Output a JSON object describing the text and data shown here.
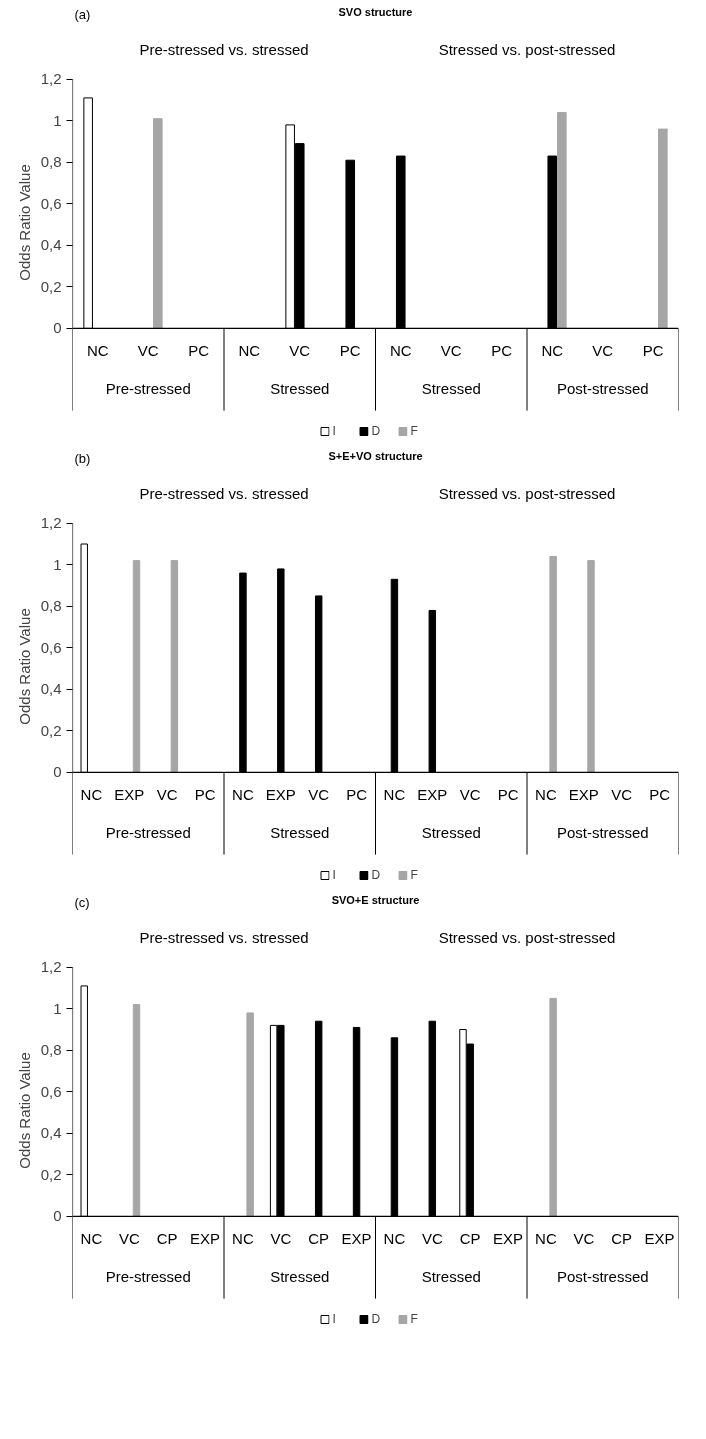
{
  "chart_data": [
    {
      "type": "bar",
      "title": "SVO structure",
      "ylabel": "Odds Ratio Value",
      "categories": [
        "NC",
        "VC",
        "PC",
        "NC",
        "VC",
        "PC",
        "NC",
        "VC",
        "PC",
        "NC",
        "VC",
        "PC"
      ],
      "series": [
        {
          "name": "I",
          "color": "#ffffff",
          "values": [
            1.11,
            null,
            null,
            null,
            0.98,
            null,
            null,
            null,
            null,
            null,
            null,
            null
          ]
        },
        {
          "name": "D",
          "color": "#000000",
          "values": [
            null,
            null,
            null,
            null,
            0.89,
            0.81,
            0.83,
            null,
            null,
            0.83,
            null,
            null
          ]
        },
        {
          "name": "F",
          "color": "#a6a6a6",
          "values": [
            null,
            1.01,
            null,
            null,
            null,
            null,
            null,
            null,
            null,
            1.04,
            null,
            0.96
          ]
        }
      ],
      "ylim": [
        0,
        1.2
      ],
      "yticks": [
        0,
        {
          "value": 0.2,
          "label": "0,2"
        },
        {
          "value": 0.4,
          "label": "0,4"
        },
        {
          "value": 0.6,
          "label": "0,6"
        },
        {
          "value": 0.8,
          "label": "0,8"
        },
        1,
        {
          "value": 1.2,
          "label": "1,2"
        }
      ],
      "legend": "bottom",
      "annotations": [
        "(a)",
        "Pre-stressed vs. stressed",
        "Stressed vs. post-stressed",
        "Pre-stressed",
        "Stressed",
        "Stressed",
        "Post-stressed"
      ]
    },
    {
      "type": "bar",
      "title": "S+E+VO structure",
      "ylabel": "Odds Ratio Value",
      "categories": [
        "NC",
        "EXP",
        "VC",
        "PC",
        "NC",
        "EXP",
        "VC",
        "PC",
        "NC",
        "EXP",
        "VC",
        "PC",
        "NC",
        "EXP",
        "VC",
        "PC"
      ],
      "series": [
        {
          "name": "I",
          "color": "#ffffff",
          "values": [
            1.1,
            null,
            null,
            null,
            null,
            null,
            null,
            null,
            null,
            null,
            null,
            null,
            null,
            null,
            null,
            null
          ]
        },
        {
          "name": "D",
          "color": "#000000",
          "values": [
            null,
            null,
            null,
            null,
            0.96,
            0.98,
            0.85,
            null,
            0.93,
            0.78,
            null,
            null,
            null,
            null,
            null,
            null
          ]
        },
        {
          "name": "F",
          "color": "#a6a6a6",
          "values": [
            null,
            1.02,
            1.02,
            null,
            null,
            null,
            null,
            null,
            null,
            null,
            null,
            null,
            1.04,
            1.02,
            null,
            null
          ]
        }
      ],
      "ylim": [
        0,
        1.2
      ],
      "yticks": [
        0,
        {
          "value": 0.2,
          "label": "0,2"
        },
        {
          "value": 0.4,
          "label": "0,4"
        },
        {
          "value": 0.6,
          "label": "0,6"
        },
        {
          "value": 0.8,
          "label": "0,8"
        },
        1,
        {
          "value": 1.2,
          "label": "1,2"
        }
      ],
      "legend": "bottom",
      "annotations": [
        "(b)",
        "Pre-stressed vs. stressed",
        "Stressed vs. post-stressed",
        "Pre-stressed",
        "Stressed",
        "Stressed",
        "Post-stressed"
      ]
    },
    {
      "type": "bar",
      "title": "SVO+E structure",
      "ylabel": "Odds Ratio Value",
      "categories": [
        "NC",
        "VC",
        "CP",
        "EXP",
        "NC",
        "VC",
        "CP",
        "EXP",
        "NC",
        "VC",
        "CP",
        "EXP",
        "NC",
        "VC",
        "CP",
        "EXP"
      ],
      "series": [
        {
          "name": "I",
          "color": "#ffffff",
          "values": [
            1.11,
            null,
            null,
            null,
            null,
            0.92,
            null,
            null,
            null,
            null,
            0.9,
            null,
            null,
            null,
            null,
            null
          ]
        },
        {
          "name": "D",
          "color": "#000000",
          "values": [
            null,
            null,
            null,
            null,
            null,
            0.92,
            0.94,
            0.91,
            0.86,
            0.94,
            0.83,
            null,
            null,
            null,
            null,
            null
          ]
        },
        {
          "name": "F",
          "color": "#a6a6a6",
          "values": [
            null,
            1.02,
            null,
            null,
            0.98,
            null,
            null,
            null,
            null,
            null,
            null,
            null,
            1.05,
            null,
            null,
            null
          ]
        }
      ],
      "ylim": [
        0,
        1.2
      ],
      "yticks": [
        0,
        {
          "value": 0.2,
          "label": "0,2"
        },
        {
          "value": 0.4,
          "label": "0,4"
        },
        {
          "value": 0.6,
          "label": "0,6"
        },
        {
          "value": 0.8,
          "label": "0,8"
        },
        1,
        {
          "value": 1.2,
          "label": "1,2"
        }
      ],
      "legend": "bottom",
      "annotations": [
        "(c)",
        "Pre-stressed vs. stressed",
        "Stressed vs. post-stressed",
        "Pre-stressed",
        "Stressed",
        "Stressed",
        "Post-stressed"
      ]
    }
  ]
}
